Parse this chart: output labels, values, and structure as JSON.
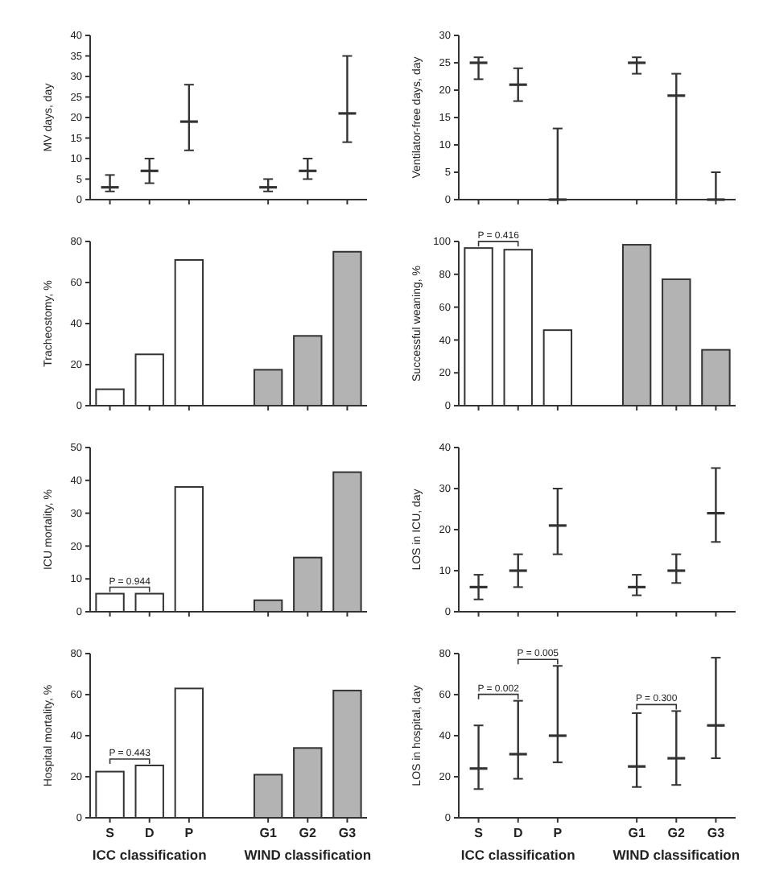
{
  "chart_data": [
    {
      "type": "box",
      "ylabel": "MV days, day",
      "categories": [
        "S",
        "D",
        "P",
        null,
        "G1",
        "G2",
        "G3"
      ],
      "color": "#333333",
      "ylim": [
        0,
        40
      ],
      "yticks": [
        0,
        5,
        10,
        15,
        20,
        25,
        30,
        35,
        40
      ],
      "tick_labels": "y",
      "boxes": [
        {
          "low": 2,
          "q1": 2,
          "median": 3,
          "q3": 6,
          "high": 6
        },
        {
          "low": 4,
          "q1": 4,
          "median": 7,
          "q3": 10,
          "high": 10
        },
        {
          "low": 12,
          "q1": 12,
          "median": 19,
          "q3": 28,
          "high": 28
        },
        null,
        {
          "low": 2,
          "q1": 2,
          "median": 3,
          "q3": 5,
          "high": 5
        },
        {
          "low": 5,
          "q1": 5,
          "median": 7,
          "q3": 10,
          "high": 10
        },
        {
          "low": 14,
          "q1": 14,
          "median": 21,
          "q3": 35,
          "high": 35
        }
      ]
    },
    {
      "type": "box",
      "ylabel": "Ventilator-free days, day",
      "categories": [
        "S",
        "D",
        "P",
        null,
        "G1",
        "G2",
        "G3"
      ],
      "color": "#333333",
      "ylim": [
        0,
        30
      ],
      "yticks": [
        0,
        5,
        10,
        15,
        20,
        25,
        30
      ],
      "tick_labels": "y",
      "boxes": [
        {
          "low": 22,
          "q1": 22,
          "median": 25,
          "q3": 26,
          "high": 26
        },
        {
          "low": 18,
          "q1": 18,
          "median": 21,
          "q3": 24,
          "high": 24
        },
        {
          "low": 0,
          "q1": 0,
          "median": 0,
          "q3": 13,
          "high": 13
        },
        null,
        {
          "low": 23,
          "q1": 23,
          "median": 25,
          "q3": 26,
          "high": 26
        },
        {
          "low": 0,
          "q1": 0,
          "median": 19,
          "q3": 23,
          "high": 23
        },
        {
          "low": 0,
          "q1": 0,
          "median": 0,
          "q3": 5,
          "high": 5
        }
      ]
    },
    {
      "type": "bar",
      "ylabel": "Tracheostomy, %",
      "categories": [
        "S",
        "D",
        "P",
        null,
        "G1",
        "G2",
        "G3"
      ],
      "values": [
        8,
        25,
        71,
        null,
        17.5,
        34,
        75
      ],
      "colors": [
        "#ffffff",
        "#ffffff",
        "#ffffff",
        null,
        "#b3b3b3",
        "#b3b3b3",
        "#b3b3b3"
      ],
      "ylim": [
        0,
        80
      ],
      "yticks": [
        0,
        20,
        40,
        60,
        80
      ],
      "tick_labels": "y"
    },
    {
      "type": "bar",
      "ylabel": "Successful weaning, %",
      "categories": [
        "S",
        "D",
        "P",
        null,
        "G1",
        "G2",
        "G3"
      ],
      "values": [
        96,
        95,
        46,
        null,
        98,
        77,
        34
      ],
      "colors": [
        "#ffffff",
        "#ffffff",
        "#ffffff",
        null,
        "#b3b3b3",
        "#b3b3b3",
        "#b3b3b3"
      ],
      "ylim": [
        0,
        100
      ],
      "yticks": [
        0,
        20,
        40,
        60,
        80,
        100
      ],
      "tick_labels": "y",
      "annotations": [
        {
          "text": "P = 0.416",
          "x": "D",
          "y": 95
        }
      ]
    },
    {
      "type": "bar",
      "ylabel": "ICU mortality, %",
      "categories": [
        "S",
        "D",
        "P",
        null,
        "G1",
        "G2",
        "G3"
      ],
      "values": [
        5.5,
        5.5,
        38,
        null,
        3.5,
        16.5,
        42.5
      ],
      "colors": [
        "#ffffff",
        "#ffffff",
        "#ffffff",
        null,
        "#b3b3b3",
        "#b3b3b3",
        "#b3b3b3"
      ],
      "ylim": [
        0,
        50
      ],
      "yticks": [
        0,
        10,
        20,
        30,
        40,
        50
      ],
      "tick_labels": "y",
      "annotations": [
        {
          "text": "P = 0.944",
          "x": "D",
          "y": 5.5
        }
      ]
    },
    {
      "type": "box",
      "ylabel": "LOS in ICU, day",
      "categories": [
        "S",
        "D",
        "P",
        null,
        "G1",
        "G2",
        "G3"
      ],
      "color": "#333333",
      "ylim": [
        0,
        40
      ],
      "yticks": [
        0,
        10,
        20,
        30,
        40
      ],
      "tick_labels": "y",
      "boxes": [
        {
          "low": 3,
          "q1": 3,
          "median": 6,
          "q3": 9,
          "high": 9
        },
        {
          "low": 6,
          "q1": 6,
          "median": 10,
          "q3": 14,
          "high": 14
        },
        {
          "low": 14,
          "q1": 14,
          "median": 21,
          "q3": 30,
          "high": 30
        },
        null,
        {
          "low": 4,
          "q1": 4,
          "median": 6,
          "q3": 9,
          "high": 9
        },
        {
          "low": 7,
          "q1": 7,
          "median": 10,
          "q3": 14,
          "high": 14
        },
        {
          "low": 17,
          "q1": 17,
          "median": 24,
          "q3": 35,
          "high": 35
        }
      ]
    },
    {
      "type": "bar",
      "ylabel": "Hospital mortality, %",
      "categories": [
        "S",
        "D",
        "P",
        null,
        "G1",
        "G2",
        "G3"
      ],
      "values": [
        22.5,
        25.5,
        63,
        null,
        21,
        34,
        62
      ],
      "colors": [
        "#ffffff",
        "#ffffff",
        "#ffffff",
        null,
        "#b3b3b3",
        "#b3b3b3",
        "#b3b3b3"
      ],
      "ylim": [
        0,
        80
      ],
      "yticks": [
        0,
        20,
        40,
        60,
        80
      ],
      "annotations": [
        {
          "text": "P = 0.443",
          "x": "D",
          "y": 25.5
        },
        "ICC classification",
        "WIND classification"
      ]
    },
    {
      "type": "box",
      "ylabel": "LOS in hospital, day",
      "categories": [
        "S",
        "D",
        "P",
        null,
        "G1",
        "G2",
        "G3"
      ],
      "color": "#333333",
      "ylim": [
        0,
        80
      ],
      "yticks": [
        0,
        20,
        40,
        60,
        80
      ],
      "boxes": [
        {
          "low": 14,
          "q1": 14,
          "median": 24,
          "q3": 45,
          "high": 45
        },
        {
          "low": 19,
          "q1": 19,
          "median": 31,
          "q3": 57,
          "high": 57
        },
        {
          "low": 27,
          "q1": 27,
          "median": 40,
          "q3": 74,
          "high": 74
        },
        null,
        {
          "low": 15,
          "q1": 15,
          "median": 25,
          "q3": 51,
          "high": 51
        },
        {
          "low": 16,
          "q1": 16,
          "median": 29,
          "q3": 52,
          "high": 52
        },
        {
          "low": 29,
          "q1": 29,
          "median": 45,
          "q3": 78,
          "high": 78
        }
      ],
      "annotations": [
        {
          "text": "P = 0.002",
          "x": "D",
          "y": 57
        },
        {
          "text": "P = 0.005",
          "x": "P",
          "y": 74
        },
        {
          "text": "P = 0.300",
          "x": "G2",
          "y": 52
        },
        "ICC classification",
        "WIND classification"
      ]
    }
  ]
}
